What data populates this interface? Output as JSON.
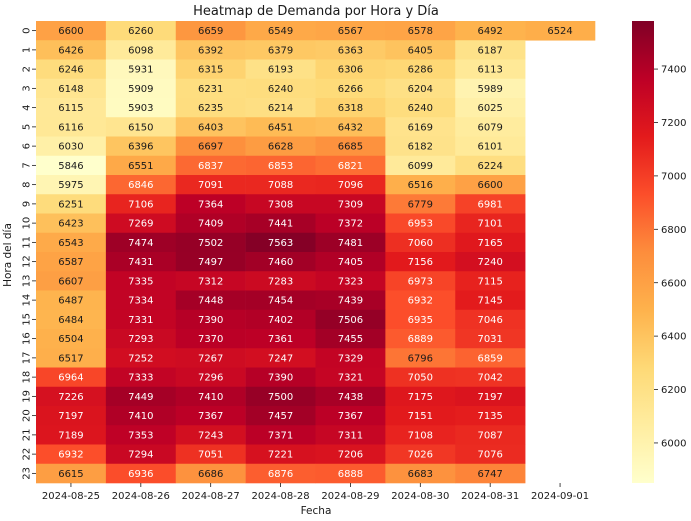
{
  "chart_data": {
    "type": "heatmap",
    "title": "Heatmap de Demanda por Hora y Día",
    "xlabel": "Fecha",
    "ylabel": "Hora del día",
    "x": [
      "2024-08-25",
      "2024-08-26",
      "2024-08-27",
      "2024-08-28",
      "2024-08-29",
      "2024-08-30",
      "2024-08-31",
      "2024-09-01"
    ],
    "y": [
      "0",
      "1",
      "2",
      "3",
      "4",
      "5",
      "6",
      "7",
      "8",
      "9",
      "10",
      "11",
      "12",
      "13",
      "14",
      "15",
      "16",
      "17",
      "18",
      "19",
      "20",
      "21",
      "22",
      "23"
    ],
    "values": [
      [
        6600,
        6260,
        6659,
        6549,
        6567,
        6578,
        6492,
        6524
      ],
      [
        6426,
        6098,
        6392,
        6379,
        6363,
        6405,
        6187,
        null
      ],
      [
        6246,
        5931,
        6315,
        6193,
        6306,
        6286,
        6113,
        null
      ],
      [
        6148,
        5909,
        6231,
        6240,
        6266,
        6204,
        5989,
        null
      ],
      [
        6115,
        5903,
        6235,
        6214,
        6318,
        6240,
        6025,
        null
      ],
      [
        6116,
        6150,
        6403,
        6451,
        6432,
        6169,
        6079,
        null
      ],
      [
        6030,
        6396,
        6697,
        6628,
        6685,
        6182,
        6101,
        null
      ],
      [
        5846,
        6551,
        6837,
        6853,
        6821,
        6099,
        6224,
        null
      ],
      [
        5975,
        6846,
        7091,
        7088,
        7096,
        6516,
        6600,
        null
      ],
      [
        6251,
        7106,
        7364,
        7308,
        7309,
        6779,
        6981,
        null
      ],
      [
        6423,
        7269,
        7409,
        7441,
        7372,
        6953,
        7101,
        null
      ],
      [
        6543,
        7474,
        7502,
        7563,
        7481,
        7060,
        7165,
        null
      ],
      [
        6587,
        7431,
        7497,
        7460,
        7405,
        7156,
        7240,
        null
      ],
      [
        6607,
        7335,
        7312,
        7283,
        7323,
        6973,
        7115,
        null
      ],
      [
        6487,
        7334,
        7448,
        7454,
        7439,
        6932,
        7145,
        null
      ],
      [
        6484,
        7331,
        7390,
        7402,
        7506,
        6935,
        7046,
        null
      ],
      [
        6504,
        7293,
        7370,
        7361,
        7455,
        6889,
        7031,
        null
      ],
      [
        6517,
        7252,
        7267,
        7247,
        7329,
        6796,
        6859,
        null
      ],
      [
        6964,
        7333,
        7296,
        7390,
        7321,
        7050,
        7042,
        null
      ],
      [
        7226,
        7449,
        7410,
        7500,
        7438,
        7175,
        7197,
        null
      ],
      [
        7197,
        7410,
        7367,
        7457,
        7367,
        7151,
        7135,
        null
      ],
      [
        7189,
        7353,
        7243,
        7371,
        7311,
        7108,
        7087,
        null
      ],
      [
        6932,
        7294,
        7051,
        7221,
        7206,
        7026,
        7076,
        null
      ],
      [
        6615,
        6936,
        6686,
        6876,
        6888,
        6683,
        6747,
        null
      ]
    ],
    "colorbar": {
      "ticks": [
        6000,
        6200,
        6400,
        6600,
        6800,
        7000,
        7200,
        7400
      ],
      "range": [
        5850,
        7580
      ],
      "colormap": "YlOrRd"
    },
    "grid": false,
    "legend": "colorbar-right"
  }
}
